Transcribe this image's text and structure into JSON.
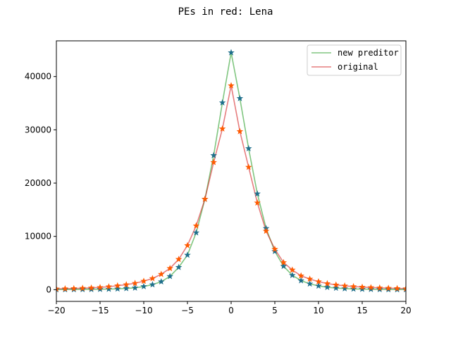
{
  "chart_data": {
    "type": "line",
    "title": "PEs in red: Lena",
    "xlabel": "",
    "ylabel": "",
    "xlim": [
      -20,
      20
    ],
    "ylim": [
      -2200,
      46700
    ],
    "xticks": [
      -20,
      -15,
      -10,
      -5,
      0,
      5,
      10,
      15,
      20
    ],
    "xtick_labels": [
      "−20",
      "−15",
      "−10",
      "−5",
      "0",
      "5",
      "10",
      "15",
      "20"
    ],
    "yticks": [
      0,
      10000,
      20000,
      30000,
      40000
    ],
    "ytick_labels": [
      "0",
      "10000",
      "20000",
      "30000",
      "40000"
    ],
    "grid": false,
    "legend_position": "top-right",
    "x": [
      -20,
      -19,
      -18,
      -17,
      -16,
      -15,
      -14,
      -13,
      -12,
      -11,
      -10,
      -9,
      -8,
      -7,
      -6,
      -5,
      -4,
      -3,
      -2,
      -1,
      0,
      1,
      2,
      3,
      4,
      5,
      6,
      7,
      8,
      9,
      10,
      11,
      12,
      13,
      14,
      15,
      16,
      17,
      18,
      19,
      20
    ],
    "series": [
      {
        "name": "new preditor",
        "color": "#2ca02c",
        "marker_color": "#1f6f8b",
        "values": [
          20,
          30,
          40,
          50,
          60,
          80,
          110,
          160,
          230,
          330,
          600,
          950,
          1500,
          2500,
          4200,
          6500,
          10700,
          17000,
          25200,
          35100,
          44500,
          35900,
          26500,
          18000,
          11500,
          7200,
          4400,
          2700,
          1700,
          1100,
          700,
          450,
          300,
          200,
          140,
          100,
          70,
          50,
          35,
          25,
          20
        ]
      },
      {
        "name": "original",
        "color": "#d62728",
        "marker_color": "#ff5a00",
        "values": [
          150,
          180,
          220,
          270,
          330,
          420,
          560,
          740,
          950,
          1200,
          1600,
          2100,
          2900,
          4000,
          5700,
          8300,
          12000,
          17000,
          23900,
          30200,
          38300,
          29700,
          23000,
          16300,
          11000,
          7600,
          5100,
          3700,
          2600,
          2000,
          1500,
          1150,
          900,
          720,
          590,
          480,
          400,
          340,
          280,
          230,
          190
        ]
      }
    ]
  }
}
